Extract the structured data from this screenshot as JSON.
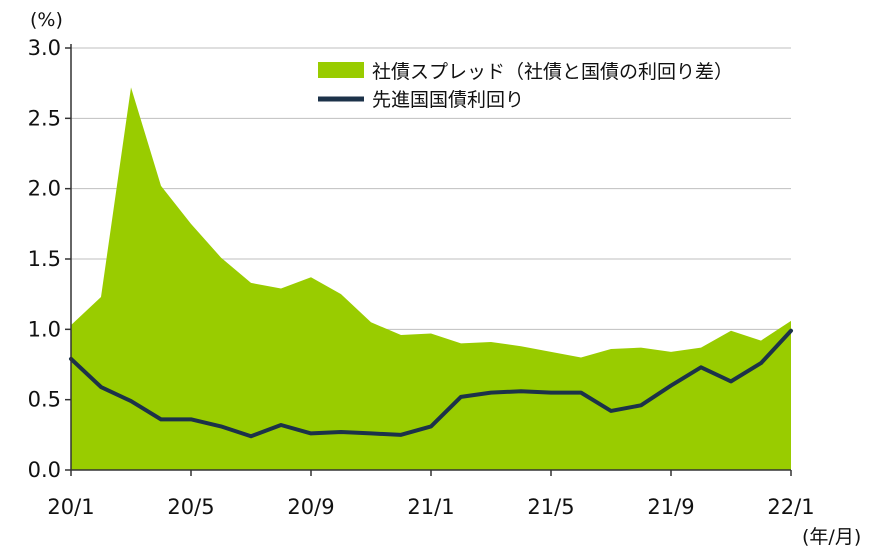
{
  "chart_data": {
    "type": "area",
    "title": "",
    "ylabel": "(%)",
    "xlabel": "(年/月)",
    "ylim": [
      0,
      3.0
    ],
    "yticks": [
      "0.0",
      "0.5",
      "1.0",
      "1.5",
      "2.0",
      "2.5",
      "3.0"
    ],
    "x": [
      "20/1",
      "20/2",
      "20/3",
      "20/4",
      "20/5",
      "20/6",
      "20/7",
      "20/8",
      "20/9",
      "20/10",
      "20/11",
      "20/12",
      "21/1",
      "21/2",
      "21/3",
      "21/4",
      "21/5",
      "21/6",
      "21/7",
      "21/8",
      "21/9",
      "21/10",
      "21/11",
      "21/12",
      "22/1"
    ],
    "xtick_labels": [
      "20/1",
      "20/5",
      "20/9",
      "21/1",
      "21/5",
      "21/9",
      "22/1"
    ],
    "grid": true,
    "legend": "top-right",
    "series": [
      {
        "name": "社債スプレッド（社債と国債の利回り差）",
        "kind": "area",
        "color": "#99cc00",
        "values": [
          1.03,
          1.23,
          2.72,
          2.02,
          1.75,
          1.51,
          1.33,
          1.29,
          1.37,
          1.25,
          1.05,
          0.96,
          0.97,
          0.9,
          0.91,
          0.88,
          0.84,
          0.8,
          0.86,
          0.87,
          0.84,
          0.87,
          0.99,
          0.92,
          1.06
        ]
      },
      {
        "name": "先進国国債利回り",
        "kind": "line",
        "color": "#1c3249",
        "values": [
          0.79,
          0.59,
          0.49,
          0.36,
          0.36,
          0.31,
          0.24,
          0.32,
          0.26,
          0.27,
          0.26,
          0.25,
          0.31,
          0.52,
          0.55,
          0.56,
          0.55,
          0.55,
          0.42,
          0.46,
          0.6,
          0.73,
          0.63,
          0.76,
          0.99
        ]
      }
    ]
  }
}
